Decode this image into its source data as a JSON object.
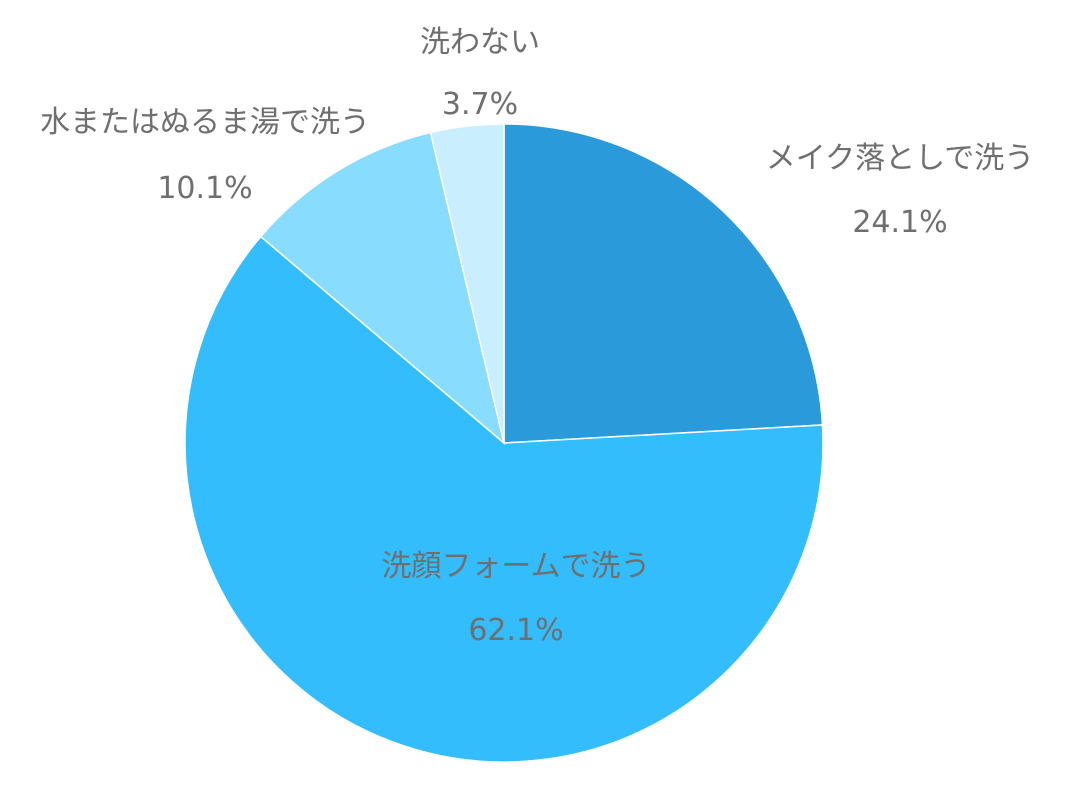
{
  "chart_data": {
    "type": "pie",
    "categories": [
      "メイク落としで洗う",
      "洗顔フォームで洗う",
      "水またはぬるま湯で洗う",
      "洗わない"
    ],
    "values": [
      24.1,
      62.1,
      10.1,
      3.7
    ],
    "value_labels": [
      "24.1%",
      "62.1%",
      "10.1%",
      "3.7%"
    ],
    "colors": [
      "#2a9ada",
      "#33bdfd",
      "#88dcfe",
      "#c9eefd"
    ],
    "start_angle_deg": 0,
    "direction": "clockwise",
    "legend": "none"
  }
}
